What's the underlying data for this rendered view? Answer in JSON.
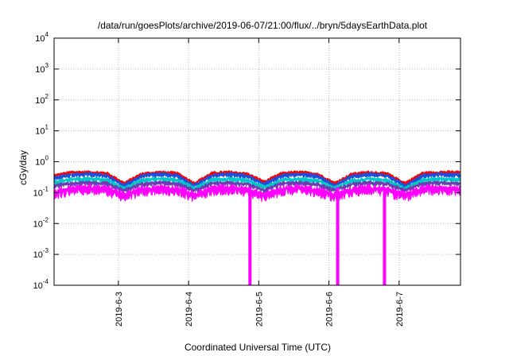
{
  "chart_data": {
    "type": "line",
    "title": "/data/run/goesPlots/archive/2019-06-07/21:00/flux/../bryn/5daysEarthData.plot",
    "xlabel": "Coordinated Universal Time (UTC)",
    "ylabel": "cGy/day",
    "yscale": "log",
    "ylim": [
      0.0001,
      10000
    ],
    "xlim": [
      "2019-06-02 02:00",
      "2019-06-07 21:00"
    ],
    "grid": true,
    "y_ticks": [
      {
        "base": "10",
        "exp": "-4",
        "value": 0.0001
      },
      {
        "base": "10",
        "exp": "-3",
        "value": 0.001
      },
      {
        "base": "10",
        "exp": "-2",
        "value": 0.01
      },
      {
        "base": "10",
        "exp": "-1",
        "value": 0.1
      },
      {
        "base": "10",
        "exp": "0",
        "value": 1
      },
      {
        "base": "10",
        "exp": "1",
        "value": 10
      },
      {
        "base": "10",
        "exp": "2",
        "value": 100
      },
      {
        "base": "10",
        "exp": "3",
        "value": 1000
      },
      {
        "base": "10",
        "exp": "4",
        "value": 10000
      }
    ],
    "x_ticks": [
      {
        "label": "2019-6-3",
        "value": "2019-06-03 00:00"
      },
      {
        "label": "2019-6-4",
        "value": "2019-06-04 00:00"
      },
      {
        "label": "2019-6-5",
        "value": "2019-06-05 00:00"
      },
      {
        "label": "2019-6-6",
        "value": "2019-06-06 00:00"
      },
      {
        "label": "2019-6-7",
        "value": "2019-06-07 00:00"
      }
    ],
    "series": [
      {
        "color": "#ff0000",
        "x": [
          "2019-06-02 02:00",
          "2019-06-02 08:00",
          "2019-06-02 14:00",
          "2019-06-02 20:00",
          "2019-06-03 02:00",
          "2019-06-03 08:00",
          "2019-06-03 14:00",
          "2019-06-03 20:00",
          "2019-06-04 02:00",
          "2019-06-04 08:00",
          "2019-06-04 14:00",
          "2019-06-04 20:00",
          "2019-06-05 02:00",
          "2019-06-05 08:00",
          "2019-06-05 14:00",
          "2019-06-05 20:00",
          "2019-06-06 02:00",
          "2019-06-06 08:00",
          "2019-06-06 14:00",
          "2019-06-06 20:00",
          "2019-06-07 02:00",
          "2019-06-07 08:00",
          "2019-06-07 14:00",
          "2019-06-07 21:00"
        ],
        "values": [
          0.35,
          0.45,
          0.45,
          0.42,
          0.2,
          0.4,
          0.45,
          0.42,
          0.2,
          0.42,
          0.45,
          0.4,
          0.22,
          0.42,
          0.45,
          0.4,
          0.2,
          0.4,
          0.45,
          0.4,
          0.2,
          0.42,
          0.45,
          0.45
        ]
      },
      {
        "color": "#1f4fd8",
        "x": [
          "2019-06-02 02:00",
          "2019-06-02 08:00",
          "2019-06-02 14:00",
          "2019-06-02 20:00",
          "2019-06-03 02:00",
          "2019-06-03 08:00",
          "2019-06-03 14:00",
          "2019-06-03 20:00",
          "2019-06-04 02:00",
          "2019-06-04 08:00",
          "2019-06-04 14:00",
          "2019-06-04 20:00",
          "2019-06-05 02:00",
          "2019-06-05 08:00",
          "2019-06-05 14:00",
          "2019-06-05 20:00",
          "2019-06-06 02:00",
          "2019-06-06 08:00",
          "2019-06-06 14:00",
          "2019-06-06 20:00",
          "2019-06-07 02:00",
          "2019-06-07 08:00",
          "2019-06-07 14:00",
          "2019-06-07 21:00"
        ],
        "values": [
          0.3,
          0.38,
          0.4,
          0.36,
          0.17,
          0.35,
          0.4,
          0.36,
          0.17,
          0.36,
          0.4,
          0.35,
          0.19,
          0.36,
          0.4,
          0.35,
          0.17,
          0.35,
          0.4,
          0.35,
          0.17,
          0.36,
          0.4,
          0.38
        ]
      },
      {
        "color": "#00c8c8",
        "x": [
          "2019-06-02 02:00",
          "2019-06-02 08:00",
          "2019-06-02 14:00",
          "2019-06-02 20:00",
          "2019-06-03 02:00",
          "2019-06-03 08:00",
          "2019-06-03 14:00",
          "2019-06-03 20:00",
          "2019-06-04 02:00",
          "2019-06-04 08:00",
          "2019-06-04 14:00",
          "2019-06-04 20:00",
          "2019-06-05 02:00",
          "2019-06-05 08:00",
          "2019-06-05 14:00",
          "2019-06-05 20:00",
          "2019-06-06 02:00",
          "2019-06-06 08:00",
          "2019-06-06 14:00",
          "2019-06-06 20:00",
          "2019-06-07 02:00",
          "2019-06-07 08:00",
          "2019-06-07 14:00",
          "2019-06-07 21:00"
        ],
        "values": [
          0.22,
          0.27,
          0.28,
          0.26,
          0.14,
          0.25,
          0.28,
          0.26,
          0.14,
          0.26,
          0.28,
          0.25,
          0.15,
          0.26,
          0.28,
          0.25,
          0.14,
          0.25,
          0.28,
          0.25,
          0.14,
          0.26,
          0.28,
          0.27
        ]
      },
      {
        "color": "#6a3fb0",
        "x": [
          "2019-06-02 02:00",
          "2019-06-02 08:00",
          "2019-06-02 14:00",
          "2019-06-02 20:00",
          "2019-06-03 02:00",
          "2019-06-03 08:00",
          "2019-06-03 14:00",
          "2019-06-03 20:00",
          "2019-06-04 02:00",
          "2019-06-04 08:00",
          "2019-06-04 14:00",
          "2019-06-04 20:00",
          "2019-06-05 02:00",
          "2019-06-05 08:00",
          "2019-06-05 14:00",
          "2019-06-05 20:00",
          "2019-06-06 02:00",
          "2019-06-06 08:00",
          "2019-06-06 14:00",
          "2019-06-06 20:00",
          "2019-06-07 02:00",
          "2019-06-07 08:00",
          "2019-06-07 14:00",
          "2019-06-07 21:00"
        ],
        "values": [
          0.17,
          0.2,
          0.21,
          0.2,
          0.12,
          0.19,
          0.21,
          0.2,
          0.12,
          0.2,
          0.21,
          0.19,
          0.12,
          0.2,
          0.21,
          0.19,
          0.12,
          0.19,
          0.21,
          0.19,
          0.12,
          0.2,
          0.21,
          0.2
        ]
      },
      {
        "color": "#ff00ff",
        "x": [
          "2019-06-02 02:00",
          "2019-06-02 08:00",
          "2019-06-02 14:00",
          "2019-06-02 20:00",
          "2019-06-03 02:00",
          "2019-06-03 08:00",
          "2019-06-03 14:00",
          "2019-06-03 20:00",
          "2019-06-04 02:00",
          "2019-06-04 08:00",
          "2019-06-04 14:00",
          "2019-06-04 20:00",
          "2019-06-05 02:00",
          "2019-06-05 08:00",
          "2019-06-05 14:00",
          "2019-06-05 20:00",
          "2019-06-06 02:00",
          "2019-06-06 08:00",
          "2019-06-06 14:00",
          "2019-06-06 20:00",
          "2019-06-07 02:00",
          "2019-06-07 08:00",
          "2019-06-07 14:00",
          "2019-06-07 21:00"
        ],
        "values": [
          0.1,
          0.13,
          0.14,
          0.13,
          0.08,
          0.12,
          0.14,
          0.13,
          0.08,
          0.13,
          0.14,
          0.12,
          0.08,
          0.13,
          0.14,
          0.12,
          0.08,
          0.12,
          0.14,
          0.12,
          0.08,
          0.13,
          0.14,
          0.13
        ]
      }
    ],
    "dropouts": [
      {
        "x": "2019-06-04 21:00",
        "y_min": 0.0001,
        "color": "#ff00ff"
      },
      {
        "x": "2019-06-06 03:00",
        "y_min": 0.0001,
        "color": "#ff00ff"
      },
      {
        "x": "2019-06-06 19:00",
        "y_min": 0.0001,
        "color": "#ff00ff"
      }
    ]
  }
}
